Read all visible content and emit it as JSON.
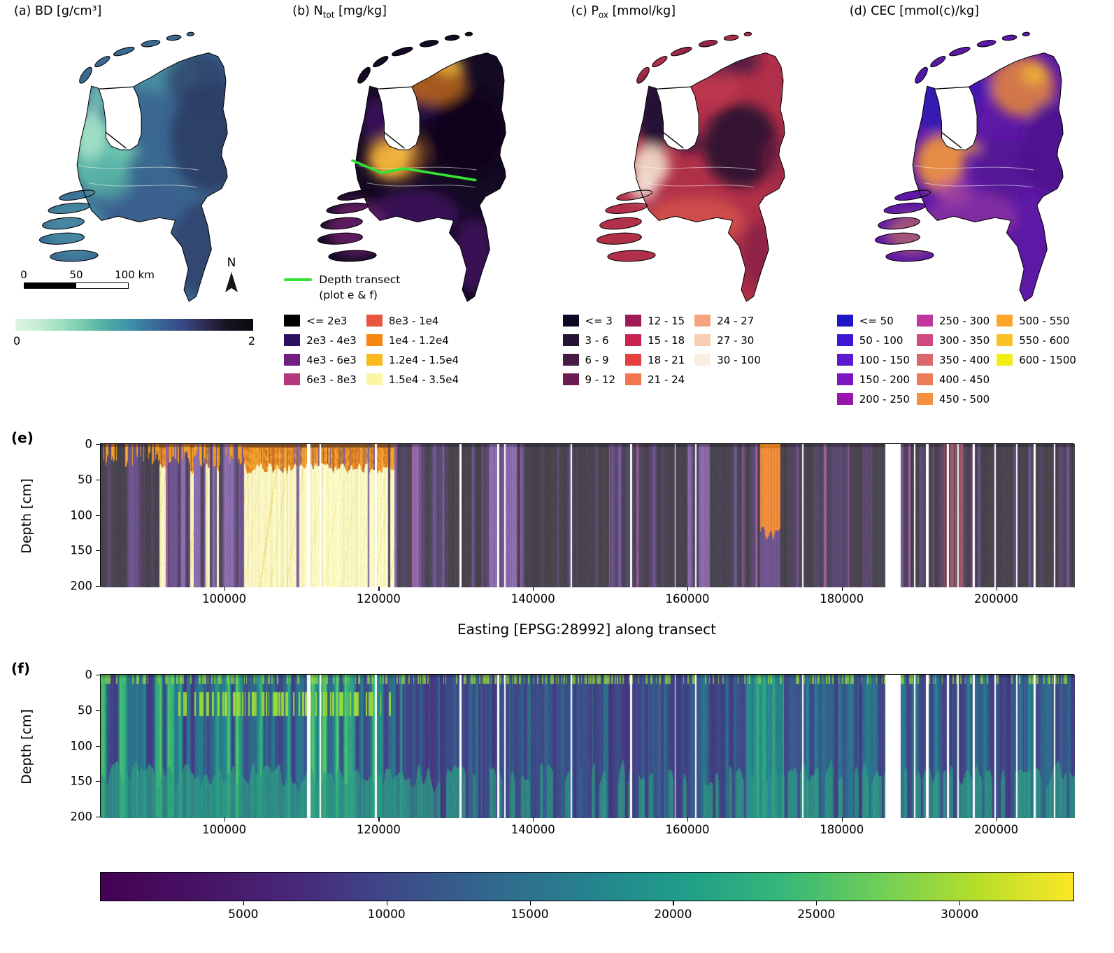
{
  "figure": {
    "background": "#ffffff"
  },
  "chart_data": [
    {
      "type": "map",
      "panel": "a",
      "title_prefix": "(a)",
      "title_main": "BD",
      "title_sub": "",
      "title_units": "[g/cm³]",
      "colorbar": {
        "orientation": "horizontal",
        "tick_labels": [
          "0",
          "2"
        ],
        "stops": [
          "#def5e5",
          "#c5ecd2",
          "#9add c1",
          "#6fc5ab",
          "#4aa8a5",
          "#3d8aa8",
          "#3a6796",
          "#374a86",
          "#302a52",
          "#15121f",
          "#0b0a10"
        ]
      },
      "scalebar": {
        "tick_labels": [
          "0",
          "50",
          "100"
        ],
        "unit_label": "km"
      },
      "north_arrow_label": "N",
      "base_color": "#3a6890",
      "blobs": [
        [
          118,
          195,
          40,
          52,
          "#5fc0aa",
          0.9
        ],
        [
          102,
          162,
          22,
          36,
          "#a9e6c9",
          0.85
        ],
        [
          112,
          112,
          15,
          20,
          "#7fd3ba",
          0.75
        ],
        [
          150,
          186,
          22,
          10,
          "#74cbb2",
          0.8
        ],
        [
          198,
          78,
          52,
          28,
          "#4a92a2",
          0.8
        ],
        [
          268,
          168,
          55,
          75,
          "#2b3a62",
          0.85
        ],
        [
          252,
          320,
          38,
          65,
          "#30406b",
          0.8
        ],
        [
          170,
          262,
          68,
          32,
          "#3b5e8e",
          0.75
        ],
        [
          252,
          88,
          45,
          38,
          "#2d3e66",
          0.75
        ],
        [
          82,
          292,
          42,
          42,
          "#4d9aab",
          0.6
        ],
        [
          130,
          230,
          30,
          25,
          "#54a9a4",
          0.6
        ]
      ]
    },
    {
      "type": "map",
      "panel": "b",
      "title_prefix": "(b)",
      "title_main": "N",
      "title_sub": "tot",
      "title_units": "[mg/kg]",
      "transect_line": {
        "color": "#35e135",
        "label_line1": "Depth transect",
        "label_line2": "(plot e & f)",
        "points": [
          [
            80,
            199
          ],
          [
            120,
            216
          ],
          [
            152,
            210
          ],
          [
            250,
            226
          ]
        ]
      },
      "legend": {
        "rows": 4,
        "items": [
          {
            "label": "<= 2e3",
            "color": "#000004"
          },
          {
            "label": "2e3 - 4e3",
            "color": "#2d1160"
          },
          {
            "label": "4e3 - 6e3",
            "color": "#721f81"
          },
          {
            "label": "6e3 - 8e3",
            "color": "#b5367a"
          },
          {
            "label": "8e3 - 1e4",
            "color": "#e85540"
          },
          {
            "label": "1e4 - 1.2e4",
            "color": "#f8850f"
          },
          {
            "label": "1.2e4 - 1.5e4",
            "color": "#fbb91f"
          },
          {
            "label": "1.5e4 - 3.5e4",
            "color": "#fcf6a4"
          }
        ]
      },
      "base_color": "#140a24",
      "blobs": [
        [
          240,
          160,
          55,
          60,
          "#0d0617",
          0.8
        ],
        [
          170,
          120,
          30,
          25,
          "#2f0d55",
          0.6
        ],
        [
          132,
          198,
          28,
          26,
          "#f6df55",
          0.95
        ],
        [
          150,
          182,
          16,
          11,
          "#fbe97e",
          0.9
        ],
        [
          140,
          192,
          42,
          36,
          "#ef8c1f",
          0.5
        ],
        [
          192,
          88,
          46,
          33,
          "#e07b1a",
          0.7
        ],
        [
          214,
          68,
          20,
          13,
          "#f5c63f",
          0.75
        ],
        [
          168,
          272,
          60,
          33,
          "#55157b",
          0.55
        ],
        [
          85,
          292,
          40,
          40,
          "#8c2a84",
          0.6
        ],
        [
          112,
          142,
          20,
          30,
          "#481270",
          0.65
        ],
        [
          248,
          330,
          28,
          52,
          "#5a1a7e",
          0.55
        ]
      ]
    },
    {
      "type": "map",
      "panel": "c",
      "title_prefix": "(c)",
      "title_main": "P",
      "title_sub": "ox",
      "title_units": "[mmol/kg]",
      "legend": {
        "rows": 4,
        "items": [
          {
            "label": "<= 3",
            "color": "#0d0925"
          },
          {
            "label": "3 - 6",
            "color": "#251336"
          },
          {
            "label": "6 - 9",
            "color": "#451c47"
          },
          {
            "label": "9 - 12",
            "color": "#6b1c51"
          },
          {
            "label": "12 - 15",
            "color": "#a01a58"
          },
          {
            "label": "15 - 18",
            "color": "#c92351"
          },
          {
            "label": "18 - 21",
            "color": "#e53e3d"
          },
          {
            "label": "21 - 24",
            "color": "#f37651"
          },
          {
            "label": "24 - 27",
            "color": "#f6a47f"
          },
          {
            "label": "27 - 30",
            "color": "#f8ceb2"
          },
          {
            "label": "30 - 100",
            "color": "#faeee1"
          }
        ]
      },
      "base_color": "#b03049",
      "blobs": [
        [
          115,
          132,
          30,
          52,
          "#181134",
          0.9
        ],
        [
          232,
          178,
          52,
          58,
          "#1c102e",
          0.85
        ],
        [
          200,
          62,
          58,
          22,
          "#2a1440",
          0.65
        ],
        [
          106,
          206,
          26,
          28,
          "#f2dcc8",
          0.92
        ],
        [
          96,
          236,
          19,
          17,
          "#f7e9da",
          0.85
        ],
        [
          168,
          282,
          68,
          33,
          "#e2604d",
          0.6
        ],
        [
          186,
          96,
          44,
          28,
          "#c63b52",
          0.5
        ],
        [
          256,
          330,
          24,
          48,
          "#6e1440",
          0.5
        ],
        [
          160,
          176,
          20,
          11,
          "#25123b",
          0.8
        ],
        [
          290,
          200,
          30,
          40,
          "#8c1f46",
          0.5
        ]
      ]
    },
    {
      "type": "map",
      "panel": "d",
      "title_prefix": "(d)",
      "title_main": "CEC",
      "title_sub": "",
      "title_units": "[mmol(c)/kg]",
      "legend": {
        "rows": 5,
        "items": [
          {
            "label": "<= 50",
            "color": "#1f16c8"
          },
          {
            "label": "50 - 100",
            "color": "#3f16d4"
          },
          {
            "label": "100 - 150",
            "color": "#5d19cf"
          },
          {
            "label": "150 - 200",
            "color": "#7d17c1"
          },
          {
            "label": "200 - 250",
            "color": "#9a15ae"
          },
          {
            "label": "250 - 300",
            "color": "#c0369b"
          },
          {
            "label": "300 - 350",
            "color": "#cd4b81"
          },
          {
            "label": "350 - 400",
            "color": "#db6871"
          },
          {
            "label": "400 - 450",
            "color": "#ec7b58"
          },
          {
            "label": "450 - 500",
            "color": "#f68f3e"
          },
          {
            "label": "500 - 550",
            "color": "#fca62c"
          },
          {
            "label": "550 - 600",
            "color": "#fac228"
          },
          {
            "label": "600 - 1500",
            "color": "#f0ee17"
          }
        ]
      },
      "base_color": "#5d18a6",
      "blobs": [
        [
          122,
          202,
          33,
          38,
          "#f59a3c",
          0.9
        ],
        [
          236,
          96,
          44,
          42,
          "#ef8f35",
          0.8
        ],
        [
          252,
          80,
          17,
          14,
          "#f7c32e",
          0.7
        ],
        [
          114,
          120,
          26,
          42,
          "#2517b5",
          0.75
        ],
        [
          170,
          100,
          24,
          24,
          "#3318b8",
          0.55
        ],
        [
          168,
          276,
          62,
          33,
          "#a43f9e",
          0.5
        ],
        [
          276,
          182,
          42,
          66,
          "#4a0f86",
          0.7
        ],
        [
          210,
          210,
          40,
          40,
          "#4a0f86",
          0.5
        ],
        [
          82,
          300,
          34,
          28,
          "#e88f4a",
          0.5
        ],
        [
          158,
          180,
          20,
          10,
          "#f2a23f",
          0.8
        ],
        [
          140,
          240,
          25,
          20,
          "#c1569f",
          0.5
        ]
      ]
    },
    {
      "type": "heatmap",
      "panel": "e",
      "panel_label": "(e)",
      "ylabel": "Depth [cm]",
      "xlabel": "Easting [EPSG:28992] along transect",
      "x_range": [
        84000,
        210000
      ],
      "y_range": [
        0,
        200
      ],
      "xticks": [
        {
          "value": 100000,
          "label": "100000"
        },
        {
          "value": 120000,
          "label": "120000"
        },
        {
          "value": 140000,
          "label": "140000"
        },
        {
          "value": 160000,
          "label": "160000"
        },
        {
          "value": 180000,
          "label": "180000"
        },
        {
          "value": 200000,
          "label": "200000"
        }
      ],
      "yticks": [
        {
          "value": 0,
          "label": "0"
        },
        {
          "value": 50,
          "label": "50"
        },
        {
          "value": 100,
          "label": "100"
        },
        {
          "value": 150,
          "label": "150"
        },
        {
          "value": 200,
          "label": "200"
        }
      ],
      "no_data_gaps": [
        [
          110900,
          420
        ],
        [
          112400,
          260
        ],
        [
          119600,
          240
        ],
        [
          130500,
          260
        ],
        [
          135400,
          300
        ],
        [
          136300,
          220
        ],
        [
          144900,
          180
        ],
        [
          152600,
          240
        ],
        [
          158300,
          160
        ],
        [
          161000,
          220
        ],
        [
          174800,
          160
        ],
        [
          186500,
          2000
        ],
        [
          189300,
          220
        ],
        [
          190900,
          320
        ],
        [
          193600,
          260
        ],
        [
          194900,
          180
        ],
        [
          196900,
          300
        ],
        [
          199700,
          220
        ],
        [
          202500,
          160
        ],
        [
          204800,
          220
        ],
        [
          207400,
          160
        ]
      ],
      "regions": {
        "peat_easting": [
          91000,
          122000
        ],
        "strong_peat_easting": [
          102500,
          121200
        ],
        "purple_cluster_ranges": [
          [
            92000,
            103000
          ],
          [
            122000,
            128500
          ],
          [
            134200,
            137800
          ],
          [
            159800,
            162800
          ]
        ],
        "orange_column_easting": [
          169300,
          171900
        ],
        "red_strip_easting": [
          192800,
          195600
        ]
      },
      "palette": {
        "background": "#49444e",
        "purple_dim": "#5b4a70",
        "purple_mid": "#6f5691",
        "purple_bright": "#8a6cab",
        "magenta": "#9e5c9e",
        "peat": "#fbf7c1",
        "peat_dark": "#f3e290",
        "orange_top": "#f09e2c",
        "orange_deep": "#d97a1e",
        "brown_top": "#7c4a20",
        "orange_column": "#ee8c3c",
        "red_pink": "#a05a6e",
        "no_data": "#ffffff"
      }
    },
    {
      "type": "heatmap",
      "panel": "f",
      "panel_label": "(f)",
      "ylabel": "Depth [cm]",
      "x_range": [
        84000,
        210000
      ],
      "y_range": [
        0,
        200
      ],
      "xticks": [
        {
          "value": 100000,
          "label": "100000"
        },
        {
          "value": 120000,
          "label": "120000"
        },
        {
          "value": 140000,
          "label": "140000"
        },
        {
          "value": 160000,
          "label": "160000"
        },
        {
          "value": 180000,
          "label": "180000"
        },
        {
          "value": 200000,
          "label": "200000"
        }
      ],
      "yticks": [
        {
          "value": 0,
          "label": "0"
        },
        {
          "value": 50,
          "label": "50"
        },
        {
          "value": 100,
          "label": "100"
        },
        {
          "value": 150,
          "label": "150"
        },
        {
          "value": 200,
          "label": "200"
        }
      ],
      "no_data_gaps": [
        [
          110900,
          420
        ],
        [
          112400,
          260
        ],
        [
          119600,
          240
        ],
        [
          130500,
          260
        ],
        [
          135400,
          300
        ],
        [
          136300,
          220
        ],
        [
          144900,
          180
        ],
        [
          152600,
          240
        ],
        [
          158300,
          160
        ],
        [
          161000,
          220
        ],
        [
          174800,
          160
        ],
        [
          186500,
          2000
        ],
        [
          189300,
          220
        ],
        [
          190900,
          320
        ],
        [
          193600,
          260
        ],
        [
          194900,
          180
        ],
        [
          196900,
          300
        ],
        [
          199700,
          220
        ],
        [
          202500,
          160
        ],
        [
          204800,
          220
        ],
        [
          207400,
          160
        ]
      ],
      "regions": {
        "green_cluster_easting": [
          167600,
          172400
        ],
        "top_green_easting": [
          147200,
          151800
        ],
        "blob_easting": [
          94000,
          121500
        ],
        "blob_depth": [
          24,
          58
        ],
        "left_green_weight_boundaries": [
          123000,
          160000
        ]
      },
      "palette": {
        "low": "#453781",
        "mid_blue": "#3b528b",
        "teal": "#26828e",
        "green": "#35b779",
        "light_green": "#97d83c",
        "yellow": "#e5e419",
        "no_data": "#ffffff"
      },
      "colorbar": {
        "orientation": "horizontal",
        "range": [
          0,
          34000
        ],
        "ticks": [
          {
            "value": 5000,
            "label": "5000"
          },
          {
            "value": 10000,
            "label": "10000"
          },
          {
            "value": 15000,
            "label": "15000"
          },
          {
            "value": 20000,
            "label": "20000"
          },
          {
            "value": 25000,
            "label": "25000"
          },
          {
            "value": 30000,
            "label": "30000"
          }
        ],
        "stops": [
          "#440154",
          "#471365",
          "#482878",
          "#3e4a89",
          "#31688e",
          "#26828e",
          "#1f9e89",
          "#35b779",
          "#6ece58",
          "#b5de2b",
          "#fde725"
        ]
      }
    }
  ]
}
